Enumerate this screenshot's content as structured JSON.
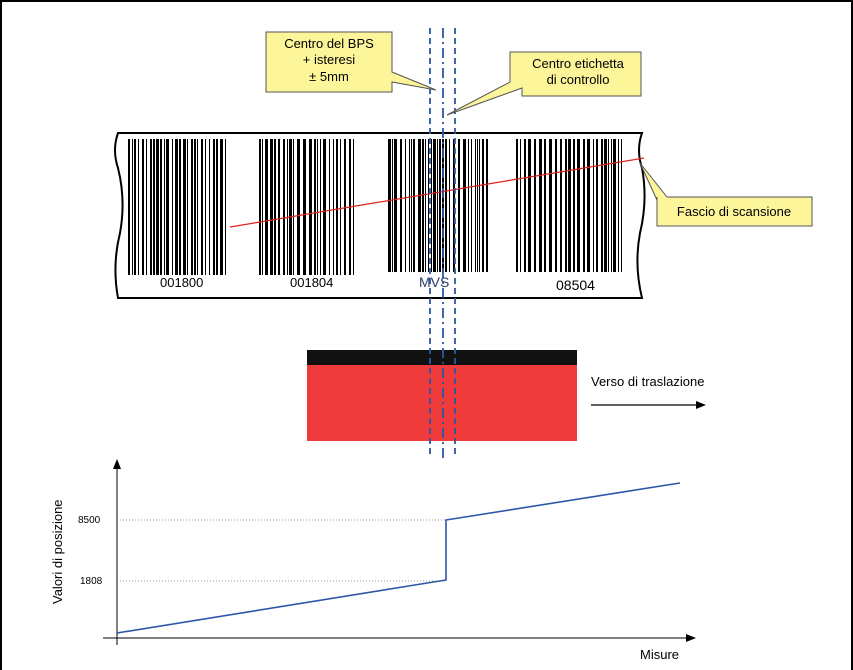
{
  "callouts": {
    "center_bps_line1": "Centro del BPS",
    "center_bps_line2": "+ isteresi",
    "center_bps_line3": "± 5mm",
    "center_label_line1": "Centro etichetta",
    "center_label_line2": "di controllo",
    "scan_beam": "Fascio di scansione",
    "direction": "Verso di traslazione"
  },
  "barcode_labels": [
    "001800",
    "001804",
    "MVS",
    "08504"
  ],
  "colors": {
    "callout_fill": "#fdf59a",
    "scan_line": "#e02020",
    "dash_line": "#2e56a8",
    "plot_line": "#2e56a8",
    "vehicle_red": "#ef3b3b",
    "vehicle_black": "#111111"
  },
  "chart_data": {
    "type": "line",
    "xlabel": "Misure",
    "ylabel": "Valori di posizione",
    "y_ticks": [
      "8500",
      "1808"
    ],
    "series": [
      {
        "values_description": "step",
        "points": [
          [
            0,
            0
          ],
          [
            1,
            1808
          ],
          [
            1,
            8500
          ],
          [
            2,
            9500
          ]
        ]
      }
    ]
  }
}
